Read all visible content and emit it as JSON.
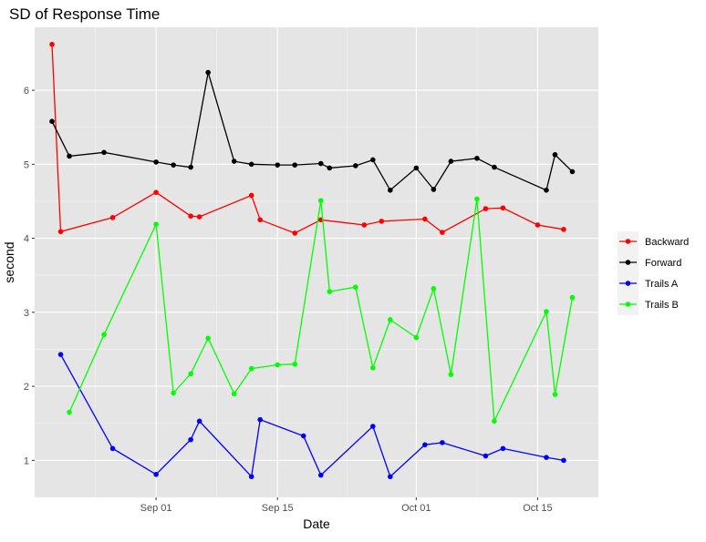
{
  "chart_data": {
    "type": "line",
    "title": "SD of Response Time",
    "xlabel": "Date",
    "ylabel": "second",
    "x_ticks": [
      "2025-09-01",
      "2025-09-15",
      "2025-10-01",
      "2025-10-15"
    ],
    "x_tick_labels": [
      "Sep 01",
      "Sep 15",
      "Oct 01",
      "Oct 15"
    ],
    "y_ticks": [
      1,
      2,
      3,
      4,
      5,
      6
    ],
    "xlim": [
      "2025-08-18",
      "2025-10-22"
    ],
    "ylim": [
      0.5,
      6.85
    ],
    "grid": true,
    "legend_position": "right",
    "panel_background": "#e5e5e5",
    "series": [
      {
        "name": "Backward",
        "color": "#ff0000",
        "x": [
          "2025-08-20",
          "2025-08-21",
          "2025-08-27",
          "2025-09-01",
          "2025-09-05",
          "2025-09-06",
          "2025-09-12",
          "2025-09-13",
          "2025-09-17",
          "2025-09-20",
          "2025-09-25",
          "2025-09-27",
          "2025-10-02",
          "2025-10-04",
          "2025-10-09",
          "2025-10-11",
          "2025-10-15",
          "2025-10-18"
        ],
        "values": [
          6.62,
          4.09,
          4.28,
          4.62,
          4.3,
          4.29,
          4.58,
          4.25,
          4.07,
          4.25,
          4.18,
          4.23,
          4.26,
          4.08,
          4.4,
          4.41,
          4.18,
          4.12
        ]
      },
      {
        "name": "Forward",
        "color": "#000000",
        "x": [
          "2025-08-20",
          "2025-08-22",
          "2025-08-26",
          "2025-09-01",
          "2025-09-03",
          "2025-09-05",
          "2025-09-07",
          "2025-09-10",
          "2025-09-12",
          "2025-09-15",
          "2025-09-17",
          "2025-09-20",
          "2025-09-21",
          "2025-09-24",
          "2025-09-26",
          "2025-09-28",
          "2025-10-01",
          "2025-10-03",
          "2025-10-05",
          "2025-10-08",
          "2025-10-10",
          "2025-10-16",
          "2025-10-17",
          "2025-10-19"
        ],
        "values": [
          5.58,
          5.11,
          5.16,
          5.03,
          4.99,
          4.96,
          6.24,
          5.04,
          5.0,
          4.99,
          4.99,
          5.01,
          4.95,
          4.98,
          5.06,
          4.65,
          4.95,
          4.66,
          5.04,
          5.08,
          4.96,
          4.65,
          5.13,
          4.9
        ]
      },
      {
        "name": "Trails A",
        "color": "#0000ff",
        "x": [
          "2025-08-21",
          "2025-08-27",
          "2025-09-01",
          "2025-09-05",
          "2025-09-06",
          "2025-09-12",
          "2025-09-13",
          "2025-09-18",
          "2025-09-20",
          "2025-09-26",
          "2025-09-28",
          "2025-10-02",
          "2025-10-04",
          "2025-10-09",
          "2025-10-11",
          "2025-10-16",
          "2025-10-18"
        ],
        "values": [
          2.43,
          1.16,
          0.81,
          1.28,
          1.53,
          0.78,
          1.55,
          1.33,
          0.8,
          1.46,
          0.78,
          1.21,
          1.24,
          1.06,
          1.16,
          1.04,
          1.0
        ]
      },
      {
        "name": "Trails B",
        "color": "#00ff00",
        "x": [
          "2025-08-22",
          "2025-08-26",
          "2025-09-01",
          "2025-09-03",
          "2025-09-05",
          "2025-09-07",
          "2025-09-10",
          "2025-09-12",
          "2025-09-15",
          "2025-09-17",
          "2025-09-20",
          "2025-09-21",
          "2025-09-24",
          "2025-09-26",
          "2025-09-28",
          "2025-10-01",
          "2025-10-03",
          "2025-10-05",
          "2025-10-08",
          "2025-10-10",
          "2025-10-16",
          "2025-10-17",
          "2025-10-19"
        ],
        "values": [
          1.65,
          2.7,
          4.19,
          1.91,
          2.17,
          2.65,
          1.9,
          2.24,
          2.29,
          2.3,
          4.51,
          3.28,
          3.34,
          2.25,
          2.9,
          2.66,
          3.32,
          2.16,
          4.53,
          1.53,
          3.01,
          1.89,
          3.2
        ]
      }
    ]
  }
}
